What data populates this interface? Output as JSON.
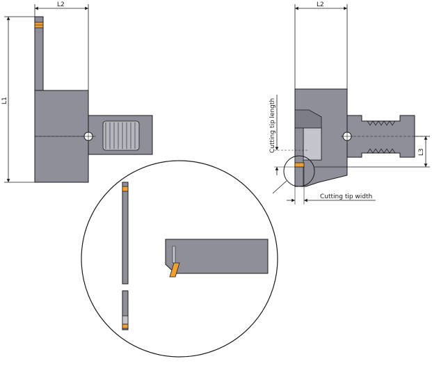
{
  "colors": {
    "body_fill": "#8f8f99",
    "body_fill_dark": "#7d7d88",
    "insert_fill": "#c4c4cc",
    "thread_fill": "#b6b6be",
    "cutting_tip": "#f0a030",
    "line": "#1a1a1a",
    "background": "#ffffff"
  },
  "labels": {
    "left_l2": "L2",
    "left_l1": "L1",
    "right_l2": "L2",
    "right_l3": "L3",
    "cutting_tip_length": "Cutting tip length",
    "cutting_tip_width": "Cutting tip width"
  }
}
